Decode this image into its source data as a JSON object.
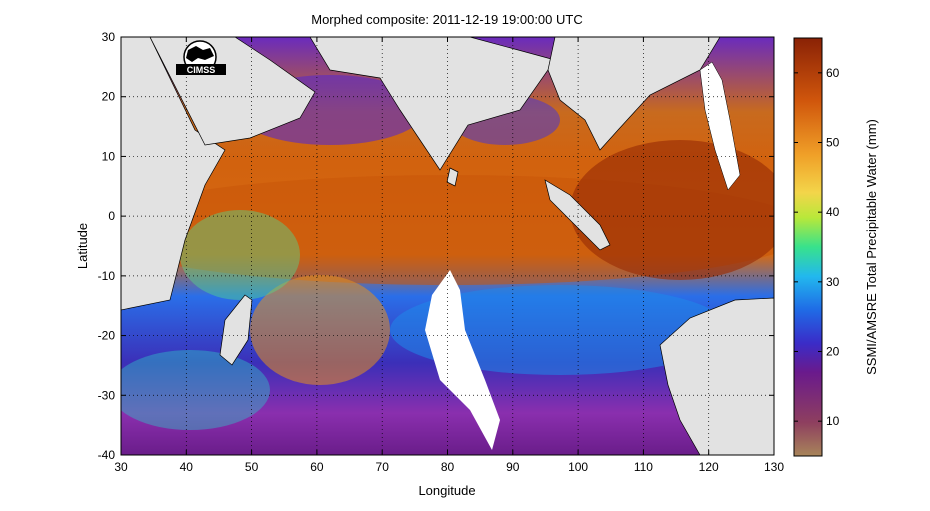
{
  "chart_data": {
    "type": "heatmap",
    "title": "Morphed composite: 2011-12-19 19:00:00 UTC",
    "xlabel": "Longitude",
    "ylabel": "Latitude",
    "xlim": [
      30,
      130
    ],
    "ylim": [
      -40,
      30
    ],
    "x_ticks": [
      30,
      40,
      50,
      60,
      70,
      80,
      90,
      100,
      110,
      120,
      130
    ],
    "y_ticks": [
      30,
      20,
      10,
      0,
      -10,
      -20,
      -30,
      -40
    ],
    "grid": true,
    "colorbar": {
      "label": "SSMI/AMSRE Total Precipitable Water (mm)",
      "range": [
        5,
        65
      ],
      "ticks": [
        10,
        20,
        30,
        40,
        50,
        60
      ]
    },
    "logo_text": "CIMSS"
  }
}
